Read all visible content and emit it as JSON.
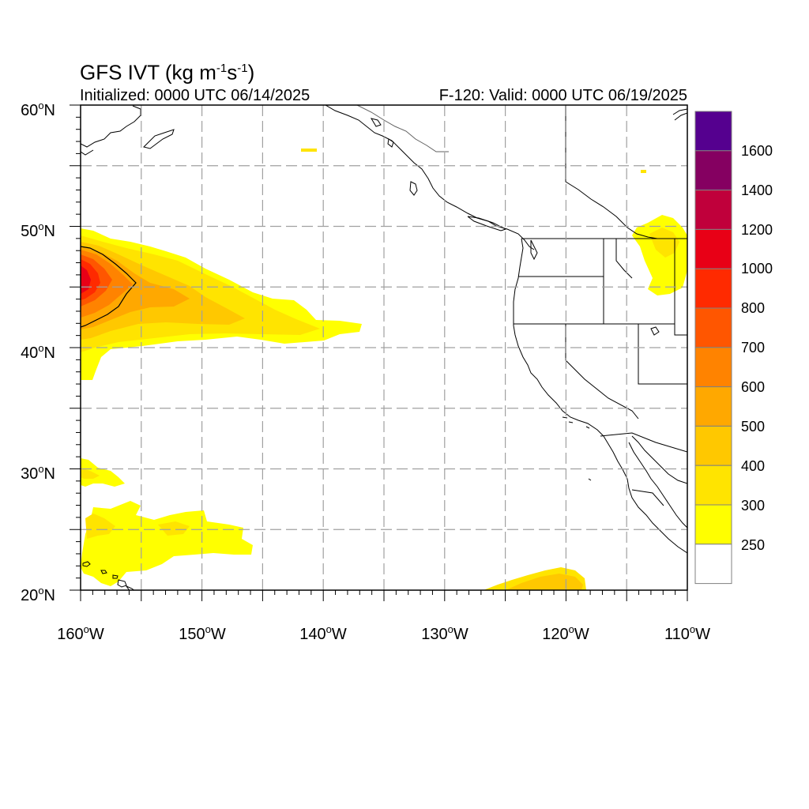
{
  "header": {
    "title_prefix": "GFS IVT (kg m",
    "title_exp1": "-1",
    "title_mid": "s",
    "title_exp2": "-1",
    "title_suffix": ")",
    "initialized": "Initialized: 0000 UTC 06/14/2025",
    "valid": "F-120: Valid: 0000 UTC 06/19/2025"
  },
  "axes": {
    "lat_labels": [
      "60",
      "50",
      "40",
      "30",
      "20"
    ],
    "lat_suffix": "N",
    "lon_labels": [
      "160",
      "150",
      "140",
      "130",
      "120",
      "110"
    ],
    "lon_suffix": "W",
    "degree_symbol": "o",
    "lat_range": [
      20,
      60
    ],
    "lon_range": [
      -160,
      -110
    ],
    "gridline_interval_deg": 5,
    "minor_tick_deg": 1
  },
  "colorbar": {
    "labels": [
      "1600",
      "1400",
      "1200",
      "1000",
      "800",
      "700",
      "600",
      "500",
      "400",
      "300",
      "250"
    ],
    "bins": [
      {
        "color": "#55008f"
      },
      {
        "color": "#850061"
      },
      {
        "color": "#c0003b"
      },
      {
        "color": "#e80016"
      },
      {
        "color": "#ff2a00"
      },
      {
        "color": "#ff5600"
      },
      {
        "color": "#ff8300"
      },
      {
        "color": "#ffa800"
      },
      {
        "color": "#ffc800"
      },
      {
        "color": "#ffe400"
      },
      {
        "color": "#ffff00"
      },
      {
        "color": "#ffffff"
      }
    ]
  },
  "colors": {
    "frame": "#000000",
    "grid": "#a0a0a0",
    "coast": "#000000",
    "state": "#606060"
  }
}
